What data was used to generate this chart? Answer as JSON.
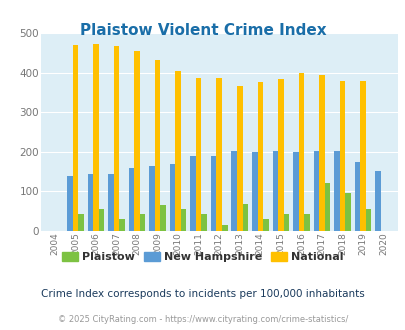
{
  "title": "Plaistow Violent Crime Index",
  "years": [
    2004,
    2005,
    2006,
    2007,
    2008,
    2009,
    2010,
    2011,
    2012,
    2013,
    2014,
    2015,
    2016,
    2017,
    2018,
    2019,
    2020
  ],
  "plaistow": [
    0,
    42,
    55,
    30,
    42,
    65,
    55,
    42,
    15,
    68,
    30,
    44,
    42,
    120,
    95,
    55,
    0
  ],
  "new_hampshire": [
    0,
    140,
    143,
    143,
    160,
    165,
    170,
    190,
    190,
    203,
    200,
    203,
    200,
    202,
    202,
    175,
    152
  ],
  "national": [
    0,
    470,
    473,
    467,
    455,
    432,
    405,
    387,
    387,
    367,
    377,
    383,
    398,
    395,
    380,
    379,
    0
  ],
  "plaistow_color": "#7dc242",
  "nh_color": "#5b9bd5",
  "national_color": "#ffc000",
  "bg_color": "#ddeef6",
  "ylim": [
    0,
    500
  ],
  "yticks": [
    0,
    100,
    200,
    300,
    400,
    500
  ],
  "subtitle": "Crime Index corresponds to incidents per 100,000 inhabitants",
  "footer": "© 2025 CityRating.com - https://www.cityrating.com/crime-statistics/",
  "legend_labels": [
    "Plaistow",
    "New Hampshire",
    "National"
  ],
  "bar_width": 0.27
}
